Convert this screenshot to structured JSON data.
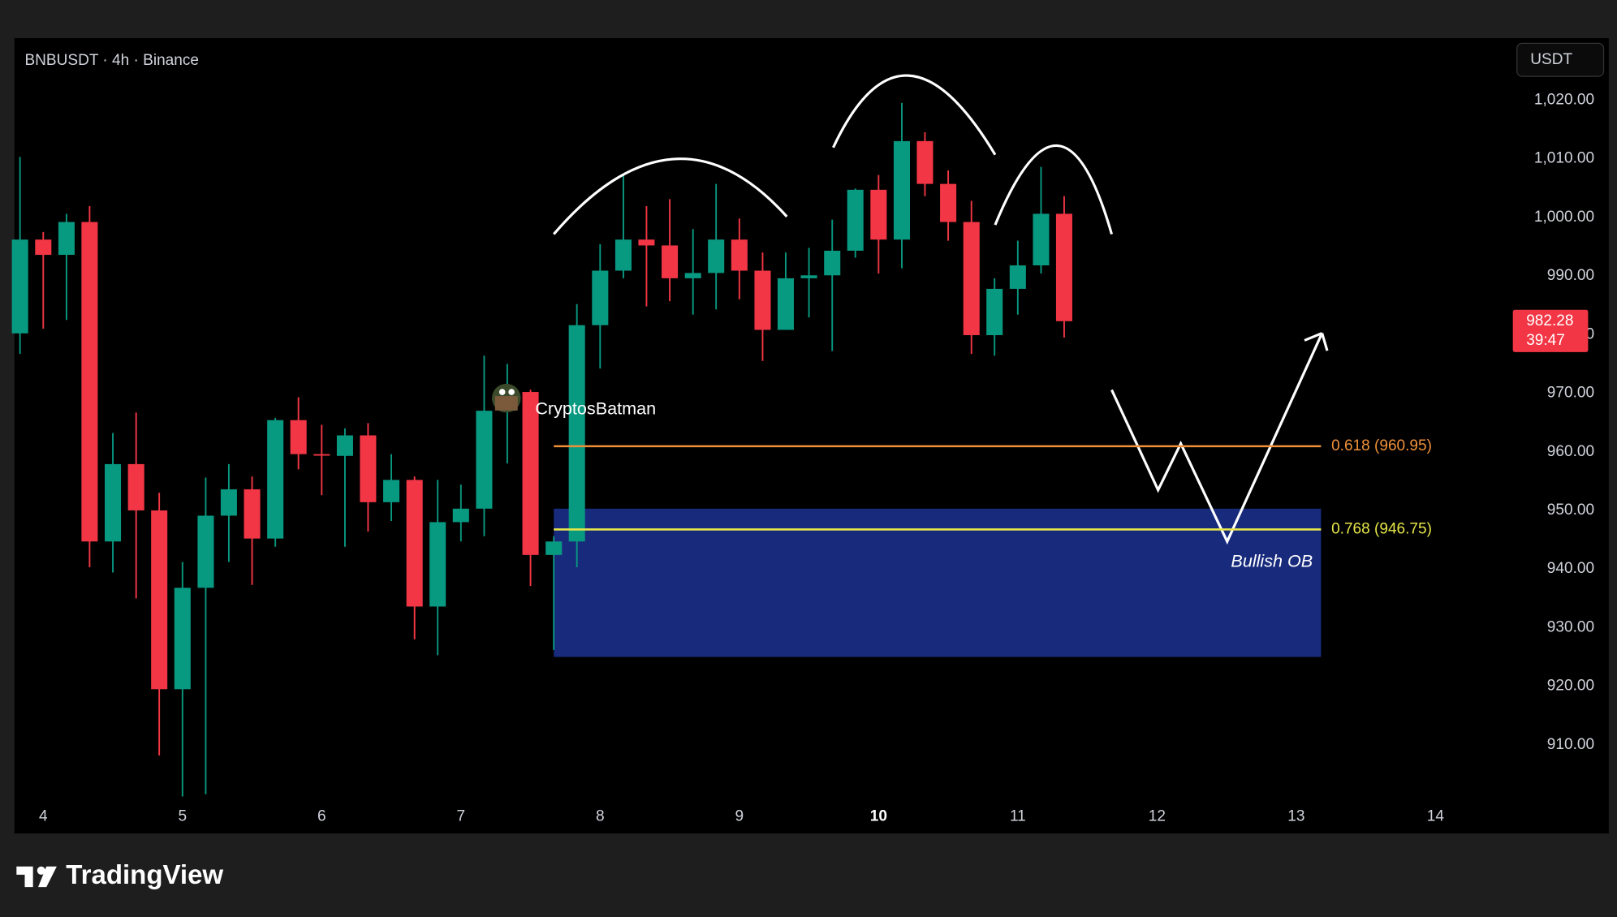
{
  "chart_data": {
    "type": "candlestick",
    "title": "BNBUSDT · 4h · Binance",
    "x": [
      3.833,
      4,
      4.167,
      4.333,
      4.5,
      4.667,
      4.833,
      5,
      5.167,
      5.333,
      5.5,
      5.667,
      5.833,
      6,
      6.167,
      6.333,
      6.5,
      6.667,
      6.833,
      7,
      7.167,
      7.333,
      7.5,
      7.667,
      7.833,
      8,
      8.167,
      8.333,
      8.5,
      8.667,
      8.833,
      9,
      9.167,
      9.333,
      9.5,
      9.667,
      9.833,
      10,
      10.167,
      10.333,
      10.5,
      10.667,
      10.833,
      11,
      11.167,
      11.333
    ],
    "open": [
      980.2,
      996.2,
      993.6,
      999.2,
      944.7,
      957.9,
      950,
      919.5,
      936.8,
      949.1,
      953.6,
      945.2,
      965.4,
      959.6,
      959.3,
      962.8,
      951.4,
      955.2,
      933.6,
      948,
      950.3,
      967,
      970.2,
      942.4,
      944.7,
      981.6,
      990.9,
      996.2,
      995.2,
      989.6,
      990.5,
      996.2,
      990.9,
      980.8,
      989.6,
      990.1,
      994.3,
      1004.7,
      996.2,
      1013,
      1005.7,
      999.2,
      979.9,
      987.8,
      991.8,
      1000.6
    ],
    "high": [
      1010.3,
      997.5,
      1000.6,
      1001.9,
      963.2,
      966.7,
      953,
      941.2,
      955.6,
      957.9,
      955.8,
      965.8,
      969.3,
      964.6,
      964,
      964.9,
      959.6,
      955.8,
      955.2,
      954.4,
      976.4,
      975,
      970.6,
      945.6,
      985.2,
      995.4,
      1007.2,
      1001.9,
      1003.1,
      998,
      1005.7,
      999.8,
      994,
      994,
      994.8,
      999.6,
      1004.9,
      1007.2,
      1019.5,
      1014.5,
      1008,
      1002.8,
      989.6,
      996,
      1008.6,
      1003.6
    ],
    "low": [
      976.7,
      981,
      982.5,
      940.3,
      939.4,
      935,
      908.2,
      901.2,
      901.6,
      941.2,
      937.3,
      943.8,
      957,
      952.6,
      943.8,
      946.4,
      948.2,
      928,
      925.3,
      944.7,
      945.6,
      958,
      937.1,
      926.2,
      940.3,
      974.2,
      989.6,
      984.8,
      985.7,
      983.4,
      984.3,
      986,
      975.5,
      980.8,
      982.9,
      977.2,
      993.1,
      990.4,
      991.3,
      1003.6,
      996,
      976.7,
      976.4,
      983.4,
      990.4,
      979.5
    ],
    "close": [
      996.2,
      993.6,
      999.2,
      944.7,
      957.9,
      950,
      919.5,
      936.8,
      949.1,
      953.6,
      945.2,
      965.4,
      959.6,
      959.4,
      962.8,
      951.4,
      955.2,
      933.6,
      948,
      950.3,
      967,
      968,
      942.4,
      944.7,
      981.6,
      990.9,
      996.2,
      995.2,
      989.6,
      990.5,
      996.2,
      990.9,
      980.8,
      989.6,
      990.1,
      994.3,
      1004.7,
      996.2,
      1013,
      1005.7,
      999.2,
      979.9,
      987.8,
      991.8,
      1000.6,
      982.28
    ],
    "up_color": "#089981",
    "down_color": "#f23645",
    "xlim": [
      3.793,
      14.504
    ],
    "ylim": [
      900.7,
      1030.56
    ],
    "xticks": [
      4,
      5,
      6,
      7,
      8,
      9,
      10,
      11,
      12,
      13,
      14
    ],
    "highlight_xtick": 10,
    "yticks": [
      {
        "value": 910,
        "label": "910.00"
      },
      {
        "value": 920,
        "label": "920.00"
      },
      {
        "value": 930,
        "label": "930.00"
      },
      {
        "value": 940,
        "label": "940.00"
      },
      {
        "value": 950,
        "label": "950.00"
      },
      {
        "value": 960,
        "label": "960.00"
      },
      {
        "value": 970,
        "label": "970.00"
      },
      {
        "value": 980,
        "label": "980.00"
      },
      {
        "value": 990,
        "label": "990.00"
      },
      {
        "value": 1000,
        "label": "1,000.00"
      },
      {
        "value": 1010,
        "label": "1,010.00"
      },
      {
        "value": 1020,
        "label": "1,020.00"
      }
    ],
    "grid": false,
    "last_price": 982.28,
    "last_price_timer": "39:47",
    "last_price_color": "#f23645",
    "zone": {
      "label": "Bullish OB",
      "top": 950.3,
      "bottom": 925,
      "start": 7.667,
      "end": 13.178,
      "color": "#1b2f8a"
    },
    "fib_levels": [
      {
        "label": "0.618 (960.95)",
        "value": 960.95,
        "color": "#f0913a"
      },
      {
        "label": "0.768 (946.75)",
        "value": 946.75,
        "color": "#e6e64a"
      }
    ]
  },
  "currency_button": "USDT",
  "watermark": "CryptosBatman",
  "branding": "TradingView"
}
